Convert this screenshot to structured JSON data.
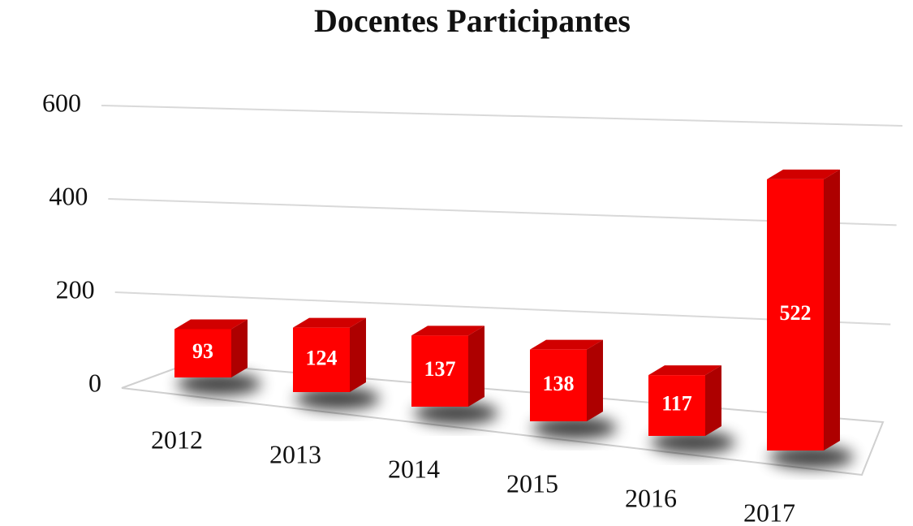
{
  "chart_data": {
    "type": "bar3d",
    "title": "Docentes Participantes",
    "categories": [
      "2012",
      "2013",
      "2014",
      "2015",
      "2016",
      "2017"
    ],
    "values": [
      93,
      124,
      137,
      138,
      117,
      522
    ],
    "color": "#ff0000",
    "ylim": [
      0,
      600
    ],
    "yticks": [
      0,
      200,
      400,
      600
    ],
    "grid": true
  }
}
